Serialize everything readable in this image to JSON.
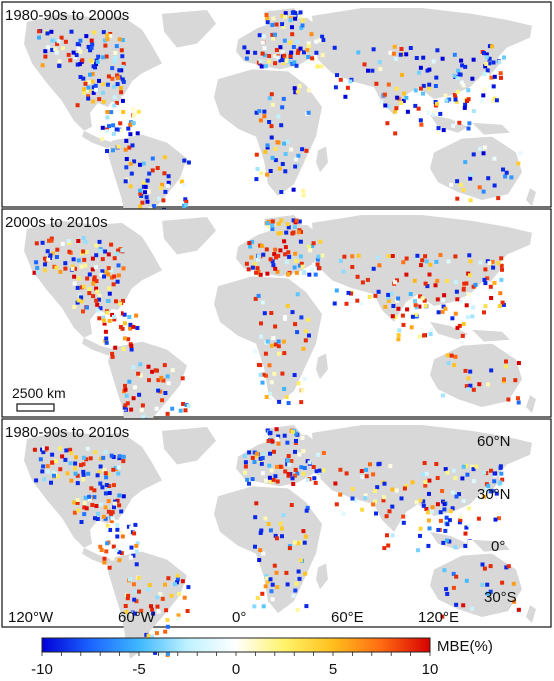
{
  "panels": [
    {
      "title": "1980-90s to 2000s",
      "seed": 11,
      "bias": -0.45
    },
    {
      "title": "2000s to 2010s",
      "seed": 47,
      "bias": 0.55
    },
    {
      "title": "1980-90s to 2010s",
      "seed": 83,
      "bias": 0.0
    }
  ],
  "scale_bar": {
    "label": "2500 km"
  },
  "lat_labels": [
    "60°N",
    "30°N",
    "0°",
    "30°S"
  ],
  "lon_labels": [
    "120°W",
    "60°W",
    "0°",
    "60°E",
    "120°E"
  ],
  "colorbar": {
    "label": "MBE(%)",
    "ticks": [
      "-10",
      "-5",
      "0",
      "5",
      "10"
    ],
    "min": -10,
    "max": 10,
    "colors": [
      "#0000d8",
      "#1b64ff",
      "#3fb8ff",
      "#bff2ff",
      "#ffffff",
      "#fff36a",
      "#ffbf1c",
      "#ff6a12",
      "#d70000"
    ]
  },
  "land_color": "#d8d8d8"
}
